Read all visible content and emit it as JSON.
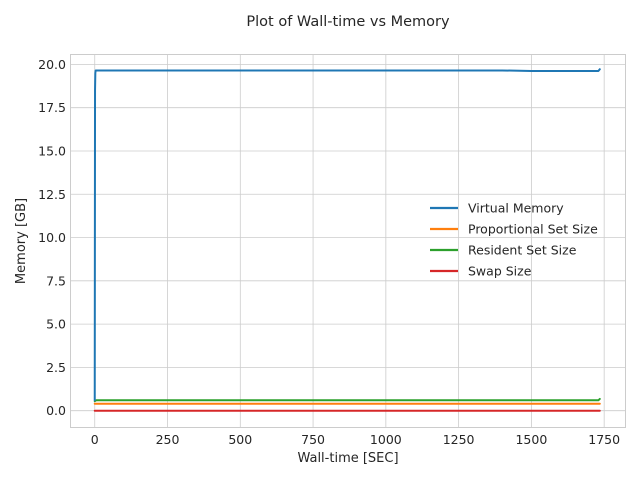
{
  "chart_data": {
    "type": "line",
    "title": "Plot of Wall-time vs Memory",
    "xlabel": "Wall-time [SEC]",
    "ylabel": "Memory [GB]",
    "xlim": [
      -85,
      1825
    ],
    "ylim": [
      -1.0,
      20.6
    ],
    "xticks": [
      0,
      250,
      500,
      750,
      1000,
      1250,
      1500,
      1750
    ],
    "xtick_labels": [
      "0",
      "250",
      "500",
      "750",
      "1000",
      "1250",
      "1500",
      "1750"
    ],
    "yticks": [
      0.0,
      2.5,
      5.0,
      7.5,
      10.0,
      12.5,
      15.0,
      17.5,
      20.0
    ],
    "ytick_labels": [
      "0.0",
      "2.5",
      "5.0",
      "7.5",
      "10.0",
      "12.5",
      "15.0",
      "17.5",
      "20.0"
    ],
    "grid": true,
    "legend_position": "center-right",
    "series": [
      {
        "name": "Virtual Memory",
        "color": "#1f77b4",
        "x": [
          0,
          1,
          2,
          3,
          5,
          100,
          500,
          1000,
          1400,
          1500,
          1730,
          1735
        ],
        "y": [
          0.6,
          18.5,
          19.5,
          19.65,
          19.65,
          19.65,
          19.65,
          19.65,
          19.65,
          19.62,
          19.62,
          19.72
        ]
      },
      {
        "name": "Proportional Set Size",
        "color": "#ff7f0e",
        "x": [
          0,
          5,
          500,
          1000,
          1500,
          1735
        ],
        "y": [
          0.4,
          0.4,
          0.4,
          0.4,
          0.4,
          0.4
        ]
      },
      {
        "name": "Resident Set Size",
        "color": "#2ca02c",
        "x": [
          0,
          5,
          500,
          1000,
          1500,
          1730,
          1735
        ],
        "y": [
          0.55,
          0.6,
          0.6,
          0.6,
          0.6,
          0.6,
          0.68
        ]
      },
      {
        "name": "Swap Size",
        "color": "#d62728",
        "x": [
          0,
          500,
          1000,
          1500,
          1735
        ],
        "y": [
          0.0,
          0.0,
          0.0,
          0.0,
          0.0
        ]
      }
    ]
  }
}
